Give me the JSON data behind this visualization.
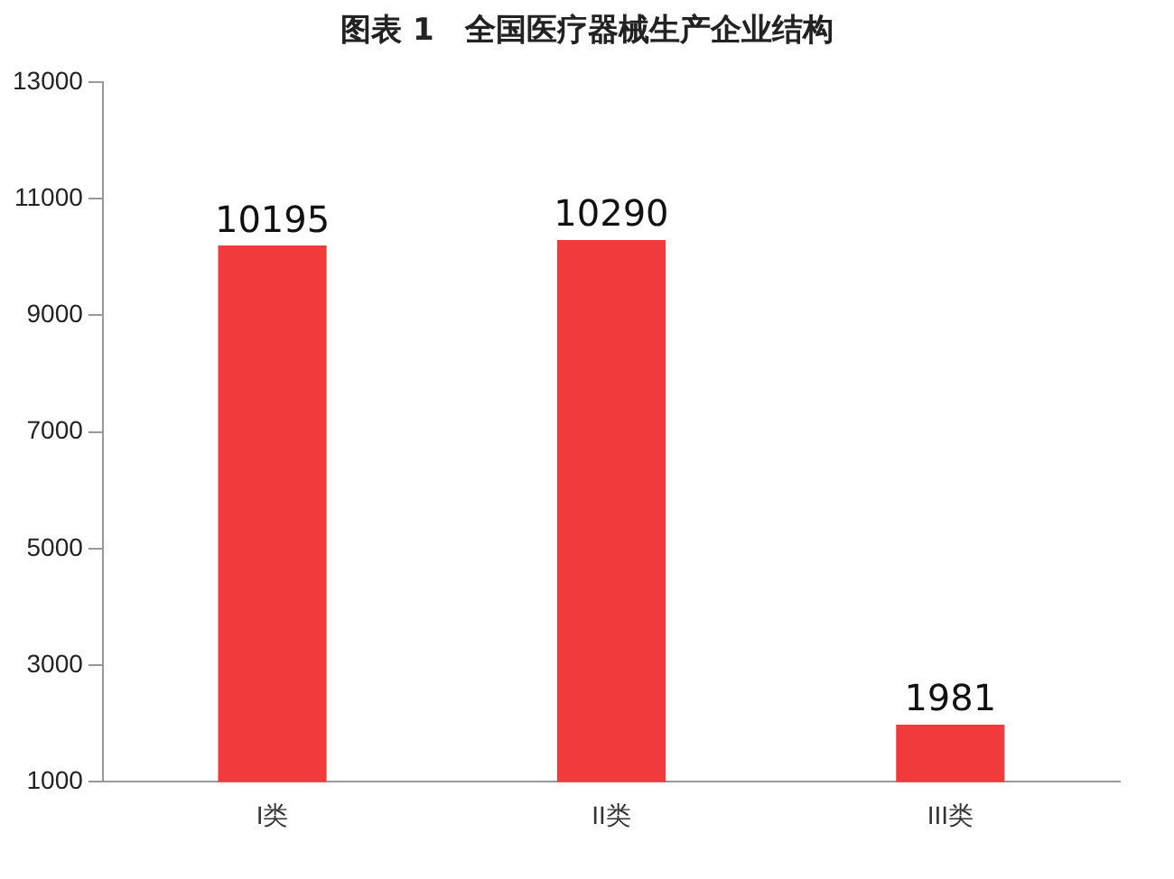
{
  "chart_data": {
    "type": "bar",
    "title": "图表 1　全国医疗器械生产企业结构",
    "categories": [
      "I类",
      "II类",
      "III类"
    ],
    "values": [
      10195,
      10290,
      1981
    ],
    "color": "#f03a3c",
    "ylim": [
      1000,
      13000
    ],
    "yticks": [
      1000,
      3000,
      5000,
      7000,
      9000,
      11000,
      13000
    ],
    "grid": false,
    "data_labels": true
  }
}
